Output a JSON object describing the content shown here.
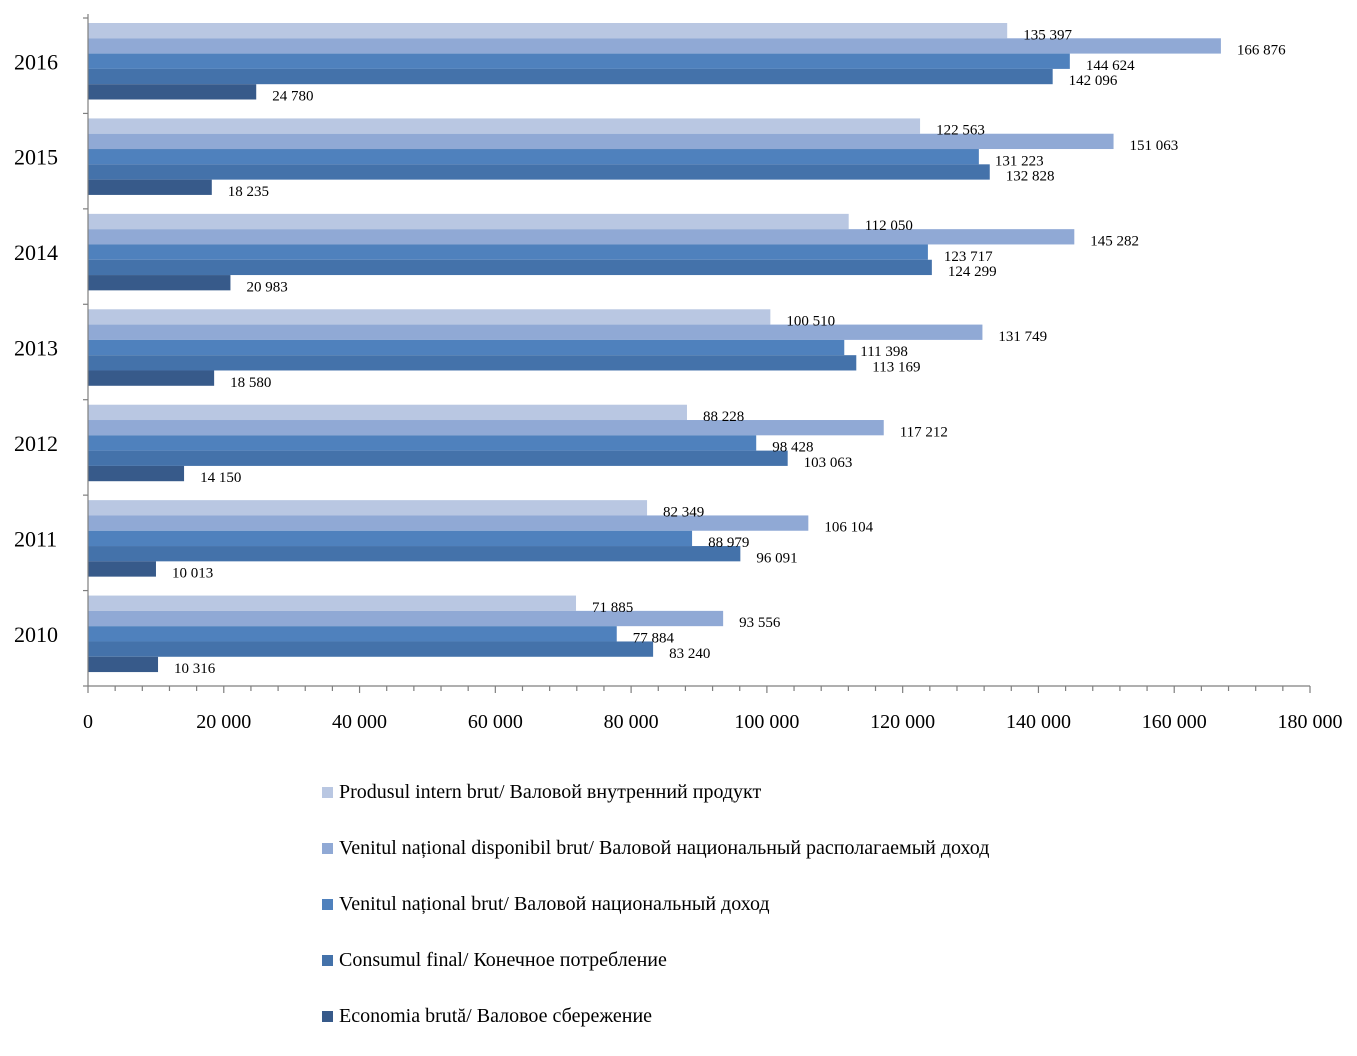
{
  "chart_data": {
    "type": "bar",
    "orientation": "horizontal",
    "categories": [
      "2016",
      "2015",
      "2014",
      "2013",
      "2012",
      "2011",
      "2010"
    ],
    "series": [
      {
        "name": "Produsul intern brut/ Валовой внутренний продукт",
        "color": "#b9c7e2",
        "values": [
          135397,
          122563,
          112050,
          100510,
          88228,
          82349,
          71885
        ]
      },
      {
        "name": "Venitul național disponibil brut/ Валовой национальный располагаемый доход",
        "color": "#90a9d5",
        "values": [
          166876,
          151063,
          145282,
          131749,
          117212,
          106104,
          93556
        ]
      },
      {
        "name": "Venitul național brut/ Валовой национальный доход",
        "color": "#4f81bd",
        "values": [
          144624,
          131223,
          123717,
          111398,
          98428,
          88979,
          77884
        ]
      },
      {
        "name": "Consumul final/ Конечное потребление",
        "color": "#4472aa",
        "values": [
          142096,
          132828,
          124299,
          113169,
          103063,
          96091,
          83240
        ]
      },
      {
        "name": "Economia brută/ Валовое сбережение",
        "color": "#375a8a",
        "values": [
          24780,
          18235,
          20983,
          18580,
          14150,
          10013,
          10316
        ]
      }
    ],
    "data_labels": [
      [
        "135 397",
        "122 563",
        "112 050",
        "100 510",
        "88 228",
        "82 349",
        "71 885"
      ],
      [
        "166 876",
        "151 063",
        "145 282",
        "131 749",
        "117 212",
        "106 104",
        "93 556"
      ],
      [
        "144 624",
        "131 223",
        "123 717",
        "111 398",
        "98 428",
        "88 979",
        "77 884"
      ],
      [
        "142 096",
        "132 828",
        "124 299",
        "113 169",
        "103 063",
        "96 091",
        "83 240"
      ],
      [
        "24 780",
        "18 235",
        "20 983",
        "18 580",
        "14 150",
        "10 013",
        "10 316"
      ]
    ],
    "xlim": [
      0,
      180000
    ],
    "x_ticks": [
      0,
      20000,
      40000,
      60000,
      80000,
      100000,
      120000,
      140000,
      160000,
      180000
    ],
    "x_tick_labels": [
      "0",
      "20 000",
      "40 000",
      "60 000",
      "80 000",
      "100 000",
      "120 000",
      "140 000",
      "160 000",
      "180 000"
    ],
    "grid": false,
    "legend_position": "bottom"
  }
}
